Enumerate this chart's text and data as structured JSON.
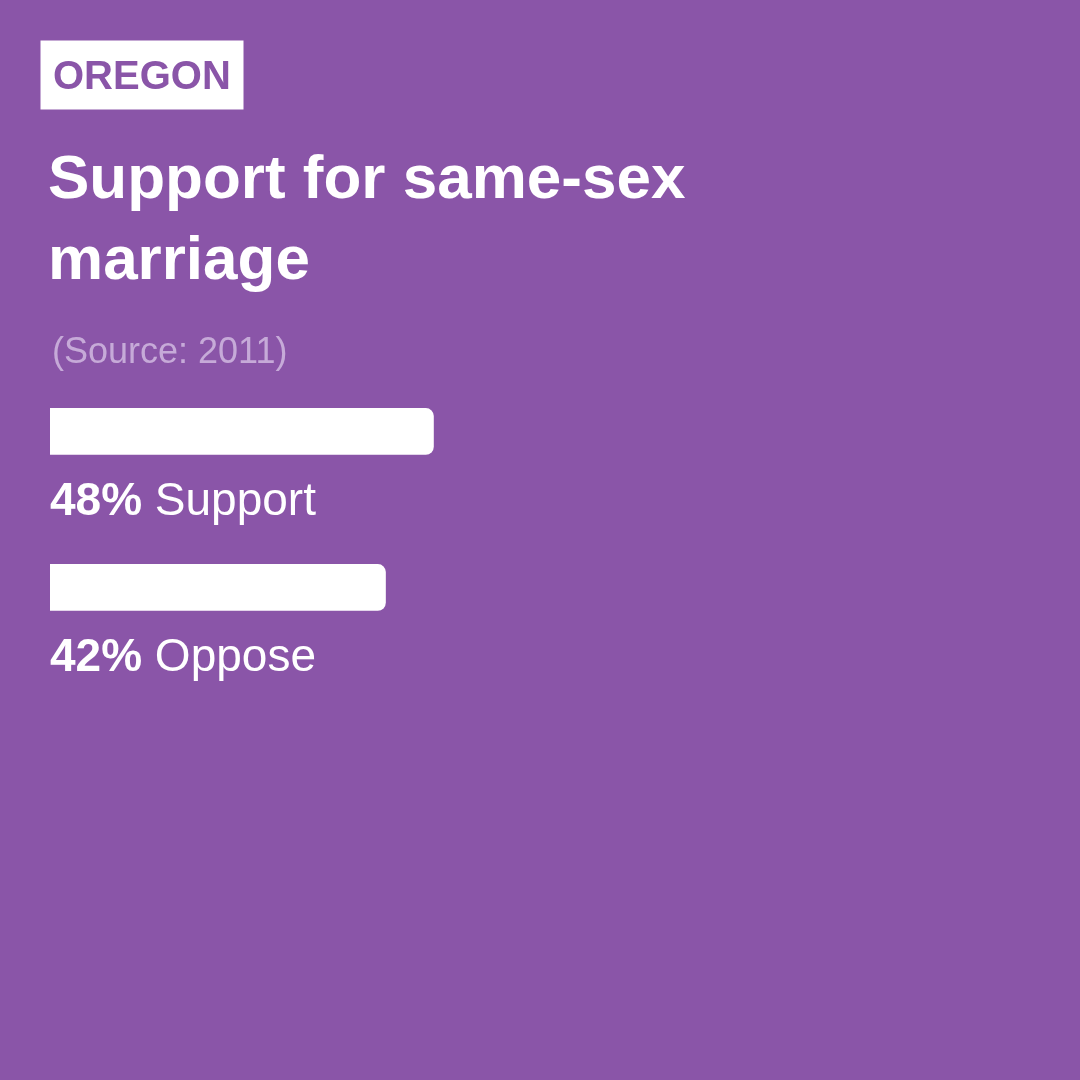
{
  "chart_data": {
    "type": "bar",
    "orientation": "horizontal",
    "title": "Support for same-sex marriage",
    "subtitle": "OREGON",
    "annotations": [
      "(Source: 2011)"
    ],
    "categories": [
      "Support",
      "Oppose"
    ],
    "values": [
      48,
      42
    ],
    "value_labels": [
      "48%",
      "42%"
    ],
    "color": "#ffffff",
    "tick_labels": false,
    "grid": false,
    "legend": false
  }
}
